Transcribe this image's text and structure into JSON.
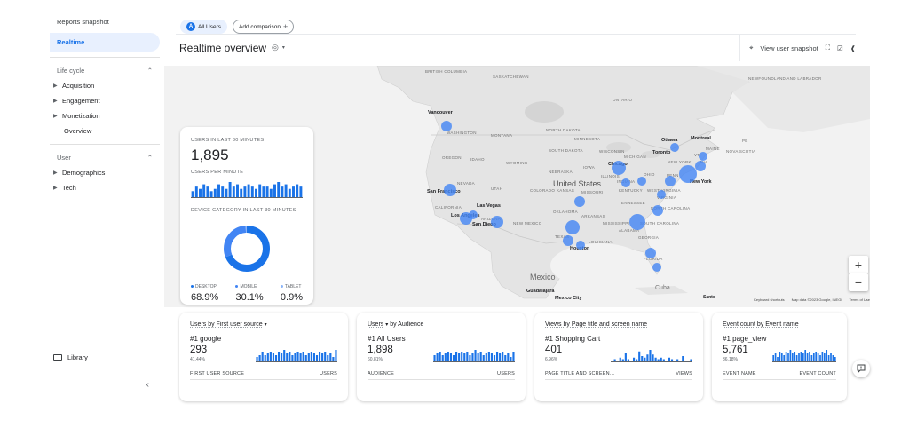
{
  "sidebar": {
    "reports_snapshot": "Reports snapshot",
    "realtime": "Realtime",
    "lifecycle": "Life cycle",
    "lifecycle_items": [
      "Acquisition",
      "Engagement",
      "Monetization"
    ],
    "overview": "Overview",
    "user": "User",
    "user_items": [
      "Demographics",
      "Tech"
    ],
    "library": "Library",
    "collapse_icon": "chevron-left-icon"
  },
  "header": {
    "all_users_badge": "A",
    "all_users": "All Users",
    "add_comparison": "Add comparison",
    "title": "Realtime overview",
    "view_snapshot": "View user snapshot"
  },
  "map": {
    "labels": [
      "BRITISH COLUMBIA",
      "SASKATCHEWAN",
      "ONTARIO",
      "NEWFOUNDLAND AND LABRADOR",
      "WASHINGTON",
      "MONTANA",
      "NORTH DAKOTA",
      "MINNESOTA",
      "OREGON",
      "IDAHO",
      "SOUTH DAKOTA",
      "WISCONSIN",
      "MICHIGAN",
      "MAINE",
      "WYOMING",
      "IOWA",
      "NEBRASKA",
      "NEVADA",
      "UTAH",
      "COLORADO",
      "KANSAS",
      "MISSOURI",
      "ILLINOIS",
      "INDIANA",
      "OHIO",
      "PENN",
      "NEW YORK",
      "VT",
      "NH",
      "NOVA SCOTIA",
      "PE",
      "CALIFORNIA",
      "ARIZONA",
      "NEW MEXICO",
      "OKLAHOMA",
      "ARKANSAS",
      "MISSISSIPPI",
      "ALABAMA",
      "GEORGIA",
      "TENNESSEE",
      "KENTUCKY",
      "WEST VIRGINIA",
      "VIRGINIA",
      "NORTH CAROLINA",
      "SOUTH CAROLINA",
      "TEXAS",
      "LOUISIANA",
      "FLORIDA"
    ],
    "cities": [
      "Vancouver",
      "San Francisco",
      "Las Vegas",
      "Los Angeles",
      "San Diego",
      "Ottawa",
      "Montreal",
      "Toronto",
      "Chicago",
      "New York",
      "Houston",
      "Guadalajara",
      "Mexico City"
    ],
    "countries": [
      "United States",
      "Mexico",
      "Cuba"
    ],
    "santo": "Santo",
    "attribution": [
      "Keyboard shortcuts",
      "Map data ©2023 Google, INEGI",
      "Terms of Use"
    ],
    "zoom_in": "+",
    "zoom_out": "−"
  },
  "users_card": {
    "users_label": "USERS IN LAST 30 MINUTES",
    "users_value": "1,895",
    "per_minute_label": "USERS PER MINUTE",
    "device_label": "DEVICE CATEGORY IN LAST 30 MINUTES",
    "devices": [
      {
        "label": "DESKTOP",
        "value": "68.9%",
        "share": 68.9,
        "color": "#1a73e8"
      },
      {
        "label": "MOBILE",
        "value": "30.1%",
        "share": 30.1,
        "color": "#4285f4"
      },
      {
        "label": "TABLET",
        "value": "0.9%",
        "share": 0.9,
        "color": "#8ab4f8"
      }
    ],
    "per_minute": [
      3,
      5,
      4,
      6,
      5,
      3,
      4,
      6,
      5,
      4,
      7,
      5,
      6,
      4,
      5,
      6,
      5,
      4,
      6,
      5,
      5,
      4,
      6,
      7,
      5,
      6,
      4,
      5,
      6,
      5
    ]
  },
  "cards": [
    {
      "title_main": "Users by First user source",
      "title_rest": "",
      "dropdown": true,
      "rank": "#1 google",
      "value": "293",
      "pct": "41.44%",
      "col_left": "FIRST USER SOURCE",
      "col_right": "USERS",
      "bars": [
        3,
        4,
        6,
        4,
        5,
        6,
        5,
        4,
        6,
        5,
        7,
        5,
        6,
        4,
        5,
        6,
        5,
        6,
        4,
        5,
        6,
        5,
        4,
        6,
        5,
        6,
        4,
        5,
        3,
        7
      ]
    },
    {
      "title_main": "Users",
      "title_rest": "by Audience",
      "dropdown": true,
      "rank": "#1 All Users",
      "value": "1,898",
      "pct": "60.81%",
      "col_left": "AUDIENCE",
      "col_right": "USERS",
      "bars": [
        4,
        5,
        6,
        4,
        5,
        6,
        5,
        4,
        6,
        5,
        6,
        5,
        6,
        4,
        5,
        7,
        5,
        6,
        4,
        5,
        6,
        5,
        4,
        6,
        5,
        6,
        4,
        5,
        3,
        6
      ]
    },
    {
      "title_main": "Views by Page title and screen name",
      "title_rest": "",
      "dropdown": false,
      "rank": "#1 Shopping Cart",
      "value": "401",
      "pct": "6.96%",
      "col_left": "PAGE TITLE AND SCREEN…",
      "col_right": "VIEWS",
      "bars": [
        1,
        2,
        1,
        3,
        2,
        6,
        2,
        1,
        3,
        2,
        7,
        4,
        3,
        5,
        8,
        5,
        3,
        2,
        3,
        2,
        1,
        3,
        2,
        1,
        2,
        1,
        4,
        1,
        1,
        2
      ]
    },
    {
      "title_main": "Event count by Event name",
      "title_rest": "",
      "dropdown": false,
      "rank": "#1 page_view",
      "value": "5,761",
      "pct": "36.18%",
      "col_left": "EVENT NAME",
      "col_right": "EVENT COUNT",
      "bars": [
        4,
        5,
        3,
        6,
        5,
        4,
        6,
        5,
        7,
        5,
        6,
        4,
        5,
        6,
        5,
        7,
        5,
        6,
        4,
        5,
        6,
        5,
        4,
        6,
        5,
        7,
        4,
        5,
        4,
        3
      ]
    }
  ]
}
